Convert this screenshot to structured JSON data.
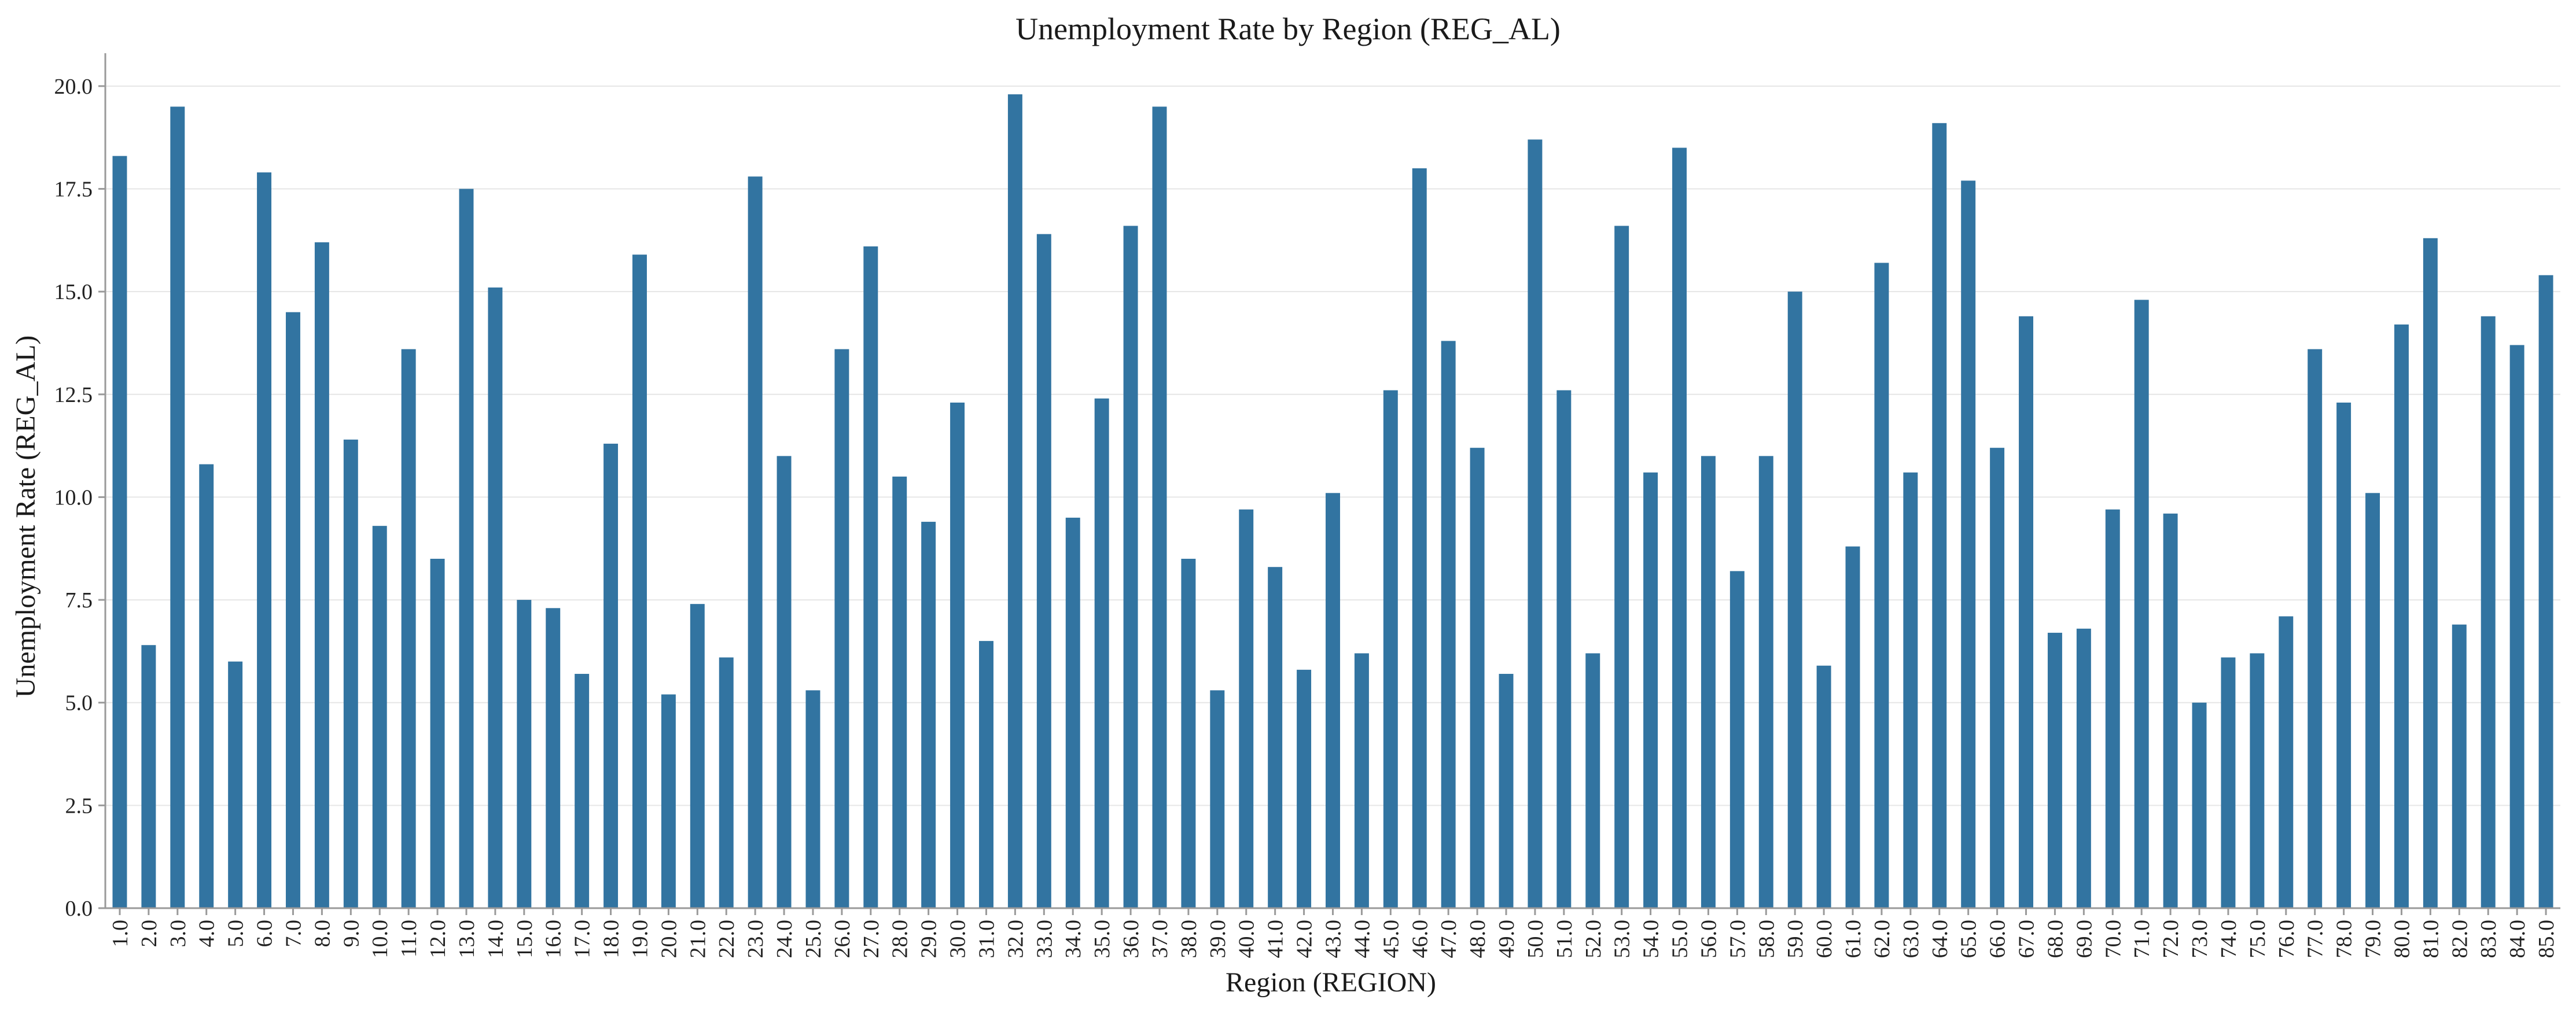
{
  "chart_data": {
    "type": "bar",
    "title": "Unemployment Rate by Region (REG_AL)",
    "xlabel": "Region (REGION)",
    "ylabel": "Unemployment Rate (REG_AL)",
    "ylim": [
      0,
      20.8
    ],
    "yticks": [
      "0.0",
      "2.5",
      "5.0",
      "7.5",
      "10.0",
      "12.5",
      "15.0",
      "17.5",
      "20.0"
    ],
    "ytick_values": [
      0,
      2.5,
      5.0,
      7.5,
      10.0,
      12.5,
      15.0,
      17.5,
      20.0
    ],
    "grid": "horizontal",
    "bar_color": "#3274a1",
    "categories": [
      "1.0",
      "2.0",
      "3.0",
      "4.0",
      "5.0",
      "6.0",
      "7.0",
      "8.0",
      "9.0",
      "10.0",
      "11.0",
      "12.0",
      "13.0",
      "14.0",
      "15.0",
      "16.0",
      "17.0",
      "18.0",
      "19.0",
      "20.0",
      "21.0",
      "22.0",
      "23.0",
      "24.0",
      "25.0",
      "26.0",
      "27.0",
      "28.0",
      "29.0",
      "30.0",
      "31.0",
      "32.0",
      "33.0",
      "34.0",
      "35.0",
      "36.0",
      "37.0",
      "38.0",
      "39.0",
      "40.0",
      "41.0",
      "42.0",
      "43.0",
      "44.0",
      "45.0",
      "46.0",
      "47.0",
      "48.0",
      "49.0",
      "50.0",
      "51.0",
      "52.0",
      "53.0",
      "54.0",
      "55.0",
      "56.0",
      "57.0",
      "58.0",
      "59.0",
      "60.0",
      "61.0",
      "62.0",
      "63.0",
      "64.0",
      "65.0",
      "66.0",
      "67.0",
      "68.0",
      "69.0",
      "70.0",
      "71.0",
      "72.0",
      "73.0",
      "74.0",
      "75.0",
      "76.0",
      "77.0",
      "78.0",
      "79.0",
      "80.0",
      "81.0",
      "82.0",
      "83.0",
      "84.0",
      "85.0"
    ],
    "values": [
      18.3,
      6.4,
      19.5,
      10.8,
      6.0,
      17.9,
      14.5,
      16.2,
      11.4,
      9.3,
      13.6,
      8.5,
      17.5,
      15.1,
      7.5,
      7.3,
      5.7,
      11.3,
      15.9,
      5.2,
      7.4,
      6.1,
      17.8,
      11.0,
      5.3,
      13.6,
      16.1,
      10.5,
      9.4,
      12.3,
      6.5,
      19.8,
      16.4,
      9.5,
      12.4,
      16.6,
      19.5,
      8.5,
      5.3,
      9.7,
      8.3,
      5.8,
      10.1,
      6.2,
      12.6,
      18.0,
      13.8,
      11.2,
      5.7,
      18.7,
      12.6,
      6.2,
      16.6,
      10.6,
      18.5,
      11.0,
      8.2,
      11.0,
      15.0,
      5.9,
      8.8,
      15.7,
      10.6,
      19.1,
      17.7,
      11.2,
      14.4,
      6.7,
      6.8,
      9.7,
      14.8,
      9.6,
      5.0,
      6.1,
      6.2,
      7.1,
      13.6,
      12.3,
      10.1,
      14.2,
      16.3,
      6.9,
      14.4,
      13.7,
      15.4
    ]
  }
}
